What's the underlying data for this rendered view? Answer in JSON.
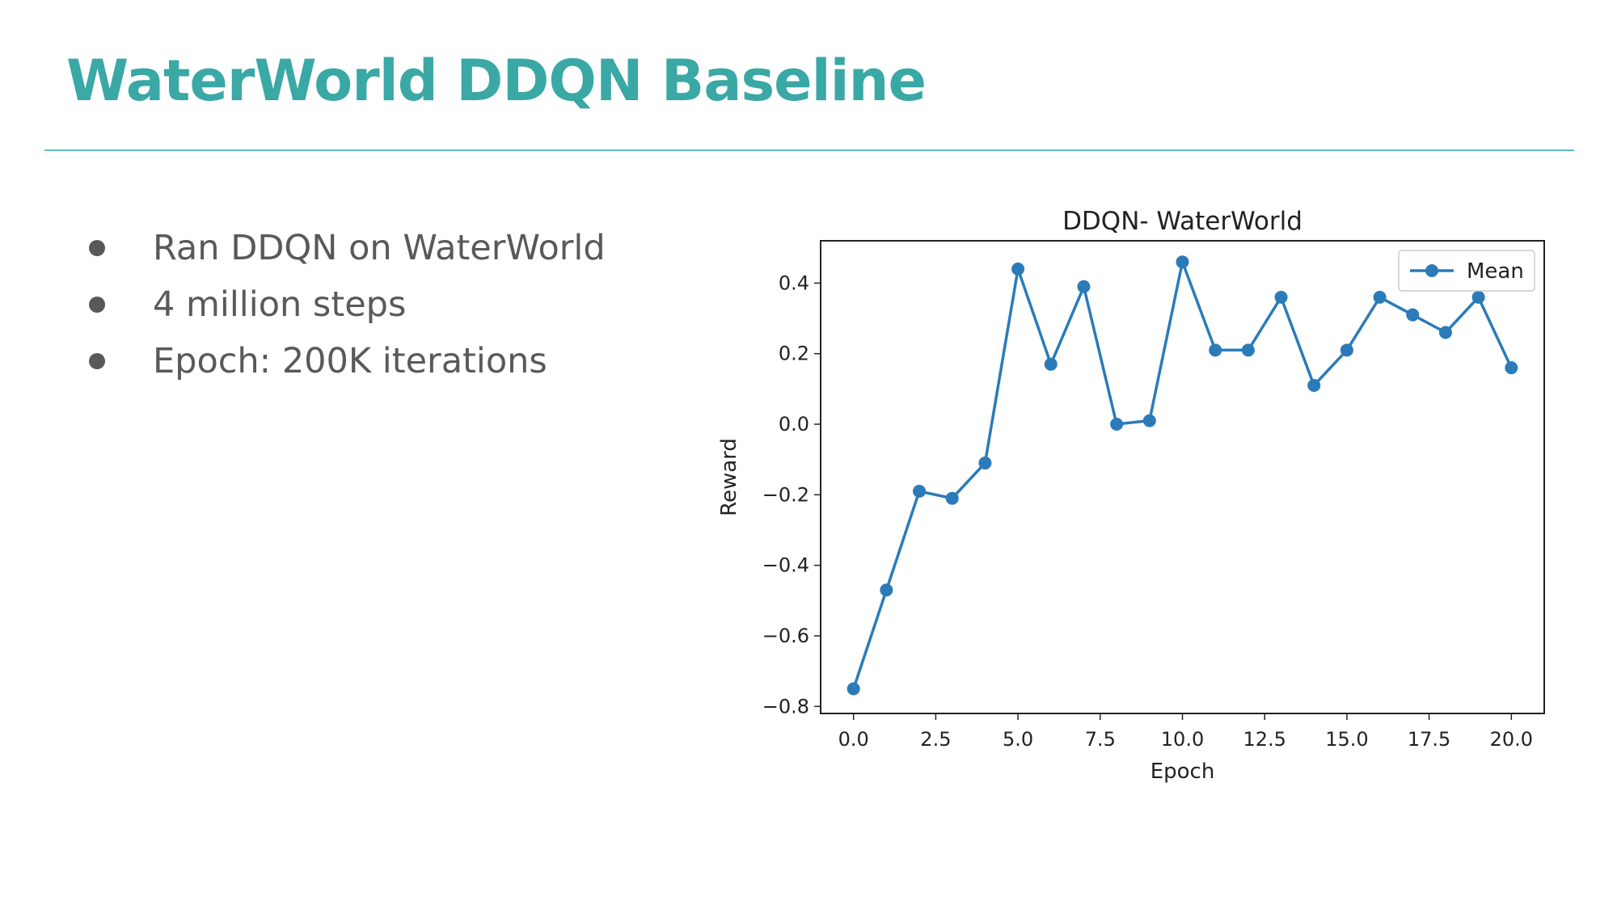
{
  "slide": {
    "title": "WaterWorld DDQN Baseline",
    "accent_color": "#3aa8a4",
    "rule_color": "#5cbcc0",
    "bullets": [
      "Ran DDQN on WaterWorld",
      "4 million steps",
      "Epoch: 200K iterations"
    ]
  },
  "chart_data": {
    "type": "line",
    "title": "DDQN- WaterWorld",
    "xlabel": "Epoch",
    "ylabel": "Reward",
    "xlim": [
      -1.0,
      21.0
    ],
    "ylim": [
      -0.82,
      0.52
    ],
    "xticks": [
      0.0,
      2.5,
      5.0,
      7.5,
      10.0,
      12.5,
      15.0,
      17.5,
      20.0
    ],
    "xtick_labels": [
      "0.0",
      "2.5",
      "5.0",
      "7.5",
      "10.0",
      "12.5",
      "15.0",
      "17.5",
      "20.0"
    ],
    "yticks": [
      -0.8,
      -0.6,
      -0.4,
      -0.2,
      0.0,
      0.2,
      0.4
    ],
    "ytick_labels": [
      "−0.8",
      "−0.6",
      "−0.4",
      "−0.2",
      "0.0",
      "0.2",
      "0.4"
    ],
    "grid": false,
    "legend_position": "top-right",
    "series": [
      {
        "name": "Mean",
        "color": "#2b7bb9",
        "marker": "circle",
        "x": [
          0,
          1,
          2,
          3,
          4,
          5,
          6,
          7,
          8,
          9,
          10,
          11,
          12,
          13,
          14,
          15,
          16,
          17,
          18,
          19,
          20
        ],
        "y": [
          -0.75,
          -0.47,
          -0.19,
          -0.21,
          -0.11,
          0.44,
          0.17,
          0.39,
          0.0,
          0.01,
          0.46,
          0.21,
          0.21,
          0.36,
          0.11,
          0.21,
          0.36,
          0.31,
          0.26,
          0.36,
          0.16
        ]
      }
    ]
  }
}
